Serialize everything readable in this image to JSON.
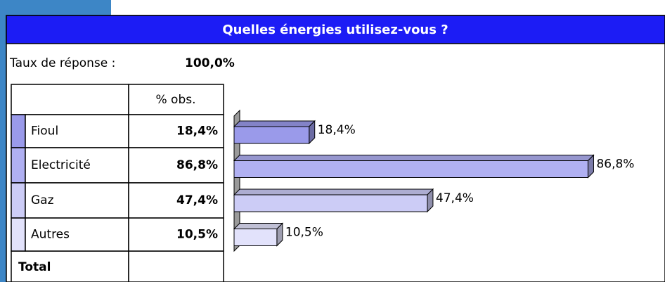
{
  "chart_data": {
    "type": "bar3d",
    "title": "Quelles énergies utilisez-vous ?",
    "response_label": "Taux de réponse :",
    "response_rate": "100,0%",
    "column_header": "% obs.",
    "total_label": "Total",
    "categories": [
      "Fioul",
      "Electricité",
      "Gaz",
      "Autres"
    ],
    "values": [
      18.4,
      86.8,
      47.4,
      10.5
    ],
    "value_labels": [
      "18,4%",
      "86,8%",
      "47,4%",
      "10,5%"
    ],
    "colors": [
      "#9a9aea",
      "#b0b0f2",
      "#ccccf6",
      "#e2e2fb"
    ],
    "xlim": [
      0,
      100
    ]
  }
}
